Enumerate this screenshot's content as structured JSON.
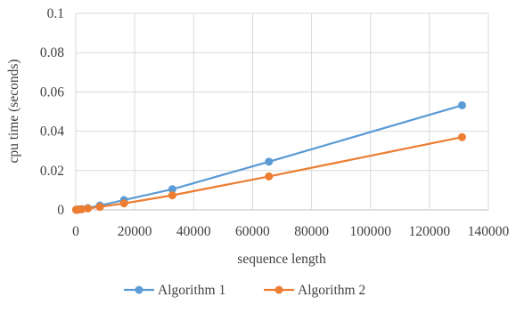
{
  "chart_data": {
    "type": "line",
    "title": "",
    "xlabel": "sequence length",
    "ylabel": "cpu time (seconds)",
    "xlim": [
      0,
      140000
    ],
    "ylim": [
      0,
      0.1
    ],
    "x_ticks": [
      "0",
      "20000",
      "40000",
      "60000",
      "80000",
      "100000",
      "120000",
      "140000"
    ],
    "y_ticks": [
      "0",
      "0.02",
      "0.04",
      "0.06",
      "0.08",
      "0.1"
    ],
    "grid": true,
    "legend_position": "bottom",
    "series": [
      {
        "name": "Algorithm 1",
        "color": "#5B9BD5",
        "points": [
          [
            128,
            3e-05
          ],
          [
            256,
            6e-05
          ],
          [
            512,
            0.0001
          ],
          [
            1024,
            0.0002
          ],
          [
            2048,
            0.0004
          ],
          [
            4096,
            0.0009
          ],
          [
            8192,
            0.0022
          ],
          [
            16384,
            0.005
          ],
          [
            32768,
            0.0105
          ],
          [
            65536,
            0.0245
          ],
          [
            131072,
            0.0532
          ]
        ]
      },
      {
        "name": "Algorithm 2",
        "color": "#ED7D31",
        "points": [
          [
            128,
            2e-05
          ],
          [
            256,
            4e-05
          ],
          [
            512,
            8e-05
          ],
          [
            1024,
            0.00015
          ],
          [
            2048,
            0.0003
          ],
          [
            4096,
            0.0007
          ],
          [
            8192,
            0.0015
          ],
          [
            16384,
            0.0033
          ],
          [
            32768,
            0.0074
          ],
          [
            65536,
            0.017
          ],
          [
            131072,
            0.037
          ]
        ]
      }
    ]
  }
}
